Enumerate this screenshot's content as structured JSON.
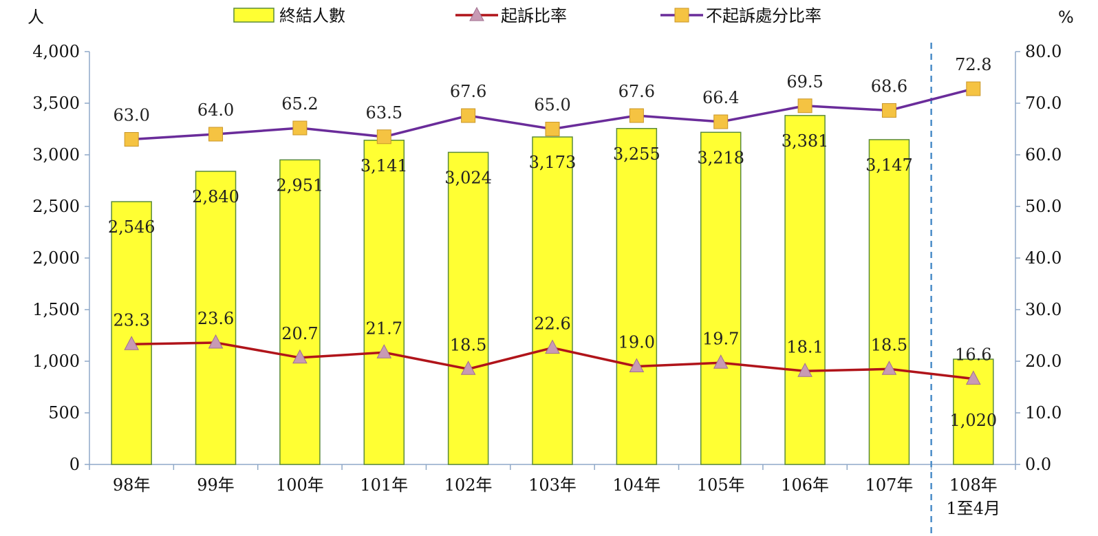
{
  "chart_data": {
    "type": "bar",
    "left_unit": "人",
    "right_unit": "%",
    "categories": [
      [
        "98年"
      ],
      [
        "99年"
      ],
      [
        "100年"
      ],
      [
        "101年"
      ],
      [
        "102年"
      ],
      [
        "103年"
      ],
      [
        "104年"
      ],
      [
        "105年"
      ],
      [
        "106年"
      ],
      [
        "107年"
      ],
      [
        "108年",
        "1至4月"
      ]
    ],
    "y_left": {
      "min": 0,
      "max": 4000,
      "ticks": [
        "0",
        "500",
        "1,000",
        "1,500",
        "2,000",
        "2,500",
        "3,000",
        "3,500",
        "4,000"
      ]
    },
    "y_right": {
      "min": 0,
      "max": 80,
      "ticks": [
        "0.0",
        "10.0",
        "20.0",
        "30.0",
        "40.0",
        "50.0",
        "60.0",
        "70.0",
        "80.0"
      ]
    },
    "series": [
      {
        "name": "終結人數",
        "type": "bar",
        "axis": "left",
        "color": "#ffff33",
        "edge_color": "#5a8a3a",
        "values": [
          2546,
          2840,
          2951,
          3141,
          3024,
          3173,
          3255,
          3218,
          3381,
          3147,
          1020
        ],
        "labels": [
          "2,546",
          "2,840",
          "2,951",
          "3,141",
          "3,024",
          "3,173",
          "3,255",
          "3,218",
          "3,381",
          "3,147",
          "1,020"
        ]
      },
      {
        "name": "起訴比率",
        "type": "line",
        "axis": "right",
        "color": "#b0141a",
        "marker": "triangle",
        "marker_color": "#c89ab4",
        "values": [
          23.3,
          23.6,
          20.7,
          21.7,
          18.5,
          22.6,
          19.0,
          19.7,
          18.1,
          18.5,
          16.6
        ],
        "labels": [
          "23.3",
          "23.6",
          "20.7",
          "21.7",
          "18.5",
          "22.6",
          "19.0",
          "19.7",
          "18.1",
          "18.5",
          "16.6"
        ]
      },
      {
        "name": "不起訴處分比率",
        "type": "line",
        "axis": "right",
        "color": "#6a2c9a",
        "marker": "square",
        "marker_color": "#f5c342",
        "values": [
          63.0,
          64.0,
          65.2,
          63.5,
          67.6,
          65.0,
          67.6,
          66.4,
          69.5,
          68.6,
          72.8
        ],
        "labels": [
          "63.0",
          "64.0",
          "65.2",
          "63.5",
          "67.6",
          "65.0",
          "67.6",
          "66.4",
          "69.5",
          "68.6",
          "72.8"
        ]
      }
    ],
    "separator_before_last": true,
    "separator_color": "#4a8cc8",
    "legend_position": "top",
    "grid": false
  }
}
